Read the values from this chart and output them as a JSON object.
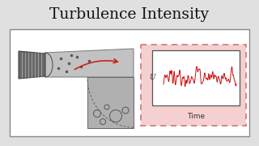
{
  "title": "Turbulence Intensity",
  "title_fontsize": 13.5,
  "bg_color": "#e0e0e0",
  "panel_bg": "#ffffff",
  "title_color": "#111111",
  "duct_light": "#c8c8c8",
  "duct_mid": "#b0b0b0",
  "nozzle_dark": "#686868",
  "stripe_color": "#888888",
  "pink_bg": "#f5d0d0",
  "pink_border": "#d08080",
  "signal_color": "#cc1111",
  "arrow_color": "#cc2222",
  "dot_color": "#555555",
  "bubble_color": "#555555",
  "time_label": "Time",
  "u_label": "U"
}
